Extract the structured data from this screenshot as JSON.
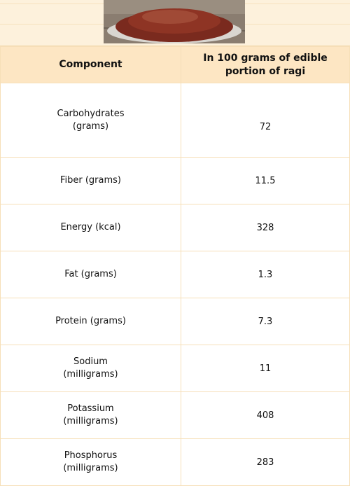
{
  "table": {
    "header": [
      "Component",
      "In 100 grams of edible portion of ragi"
    ],
    "rows": [
      [
        "Carbohydrates (grams)",
        72
      ],
      [
        "Fiber (grams)",
        11.5
      ],
      [
        "Energy (kcal)",
        328
      ],
      [
        "Fat (grams)",
        1.3
      ],
      [
        "Protein (grams)",
        7.3
      ],
      [
        "Sodium (milligrams)",
        11
      ],
      [
        "Potassium (milligrams)",
        408
      ],
      [
        "Phosphorus (milligrams)",
        283
      ]
    ]
  }
}
